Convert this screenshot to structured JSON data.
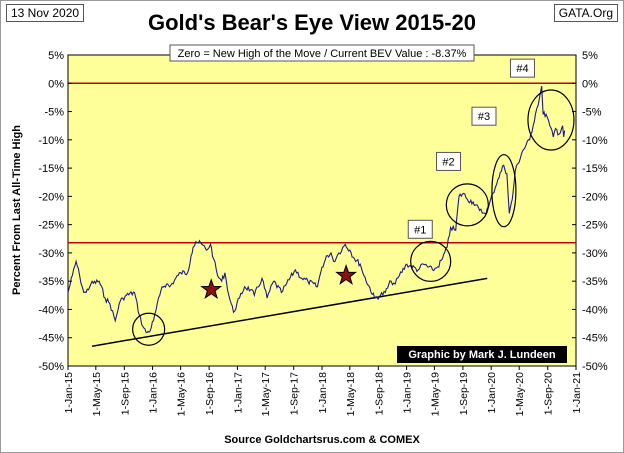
{
  "header": {
    "date": "13 Nov 2020",
    "title": "Gold's Bear's Eye View 2015-20",
    "brand": "GATA.Org"
  },
  "chart_data": {
    "type": "line",
    "title": "Gold's Bear's Eye View 2015-20",
    "subtitle": "Zero = New High of the Move / Current  BEV Value : -8.37%",
    "ylabel": "Percent  From  Last  All-Time High",
    "xlabel": "",
    "source": "Source Goldchartsrus.com & COMEX",
    "credit": "Graphic by Mark J. Lundeen",
    "ylim": [
      -50,
      5
    ],
    "y_ticks": [
      "5%",
      "0%",
      "-5%",
      "-10%",
      "-15%",
      "-20%",
      "-25%",
      "-30%",
      "-35%",
      "-40%",
      "-45%",
      "-50%"
    ],
    "y_tick_values": [
      5,
      0,
      -5,
      -10,
      -15,
      -20,
      -25,
      -30,
      -35,
      -40,
      -45,
      -50
    ],
    "x_ticks": [
      "1-Jan-15",
      "1-May-15",
      "1-Sep-15",
      "1-Jan-16",
      "1-May-16",
      "1-Sep-16",
      "1-Jan-17",
      "1-May-17",
      "1-Sep-17",
      "1-Jan-18",
      "1-May-18",
      "1-Sep-18",
      "1-Jan-19",
      "1-May-19",
      "1-Sep-19",
      "1-Jan-20",
      "1-May-20",
      "1-Sep-20",
      "1-Jan-21"
    ],
    "grid": false,
    "background": "#ffff99",
    "colors": {
      "series": "#1a1a8c",
      "reference_line": "#c00000",
      "trend_line": "#000000",
      "star": "#8b1010"
    },
    "reference_lines": [
      {
        "y": 0
      },
      {
        "y": -28.2
      }
    ],
    "trend_line": {
      "from": [
        "2015-04-15",
        -46.5
      ],
      "to": [
        "2019-12-15",
        -34.5
      ]
    },
    "series": [
      {
        "x": [
          "2015-01-01",
          "2015-01-20",
          "2015-02-05",
          "2015-02-20",
          "2015-03-10",
          "2015-03-20",
          "2015-04-10",
          "2015-05-15",
          "2015-06-10",
          "2015-07-01",
          "2015-07-24",
          "2015-08-10",
          "2015-08-25",
          "2015-09-10",
          "2015-10-15",
          "2015-11-05",
          "2015-11-20",
          "2015-12-03",
          "2015-12-17",
          "2016-01-05",
          "2016-02-01",
          "2016-02-11",
          "2016-03-01",
          "2016-03-15",
          "2016-04-20",
          "2016-05-01",
          "2016-05-31",
          "2016-06-15",
          "2016-06-24",
          "2016-07-06",
          "2016-08-01",
          "2016-08-20",
          "2016-09-07",
          "2016-09-20",
          "2016-10-07",
          "2016-10-25",
          "2016-11-08",
          "2016-11-25",
          "2016-12-15",
          "2017-01-10",
          "2017-02-01",
          "2017-02-27",
          "2017-03-15",
          "2017-04-17",
          "2017-05-09",
          "2017-06-06",
          "2017-07-10",
          "2017-08-01",
          "2017-09-08",
          "2017-10-06",
          "2017-11-01",
          "2017-12-12",
          "2018-01-01",
          "2018-01-25",
          "2018-02-09",
          "2018-02-20",
          "2018-03-15",
          "2018-04-11",
          "2018-05-01",
          "2018-05-21",
          "2018-06-15",
          "2018-07-01",
          "2018-08-16",
          "2018-09-10",
          "2018-10-01",
          "2018-10-26",
          "2018-11-13",
          "2018-12-01",
          "2019-01-02",
          "2019-02-20",
          "2019-03-15",
          "2019-04-23",
          "2019-05-15",
          "2019-06-05",
          "2019-06-25",
          "2019-07-10",
          "2019-08-01",
          "2019-08-15",
          "2019-09-04",
          "2019-09-20",
          "2019-10-15",
          "2019-11-12",
          "2019-12-05",
          "2019-12-20",
          "2020-01-08",
          "2020-01-30",
          "2020-02-24",
          "2020-03-09",
          "2020-03-19",
          "2020-04-01",
          "2020-04-14",
          "2020-05-15",
          "2020-06-15",
          "2020-07-10",
          "2020-07-28",
          "2020-08-06",
          "2020-08-12",
          "2020-08-25",
          "2020-09-10",
          "2020-09-25",
          "2020-10-05",
          "2020-10-20",
          "2020-11-04",
          "2020-11-09",
          "2020-11-13"
        ],
        "values": [
          -37,
          -34,
          -31.5,
          -34,
          -37,
          -37,
          -35.5,
          -35,
          -38,
          -39,
          -42,
          -39,
          -38,
          -37.5,
          -37,
          -41,
          -43,
          -44,
          -44,
          -42,
          -37.5,
          -36,
          -35.5,
          -36,
          -34,
          -33.5,
          -33.5,
          -30.5,
          -29,
          -28,
          -28.5,
          -29.5,
          -28.5,
          -31,
          -34,
          -35,
          -33.5,
          -37.5,
          -40.5,
          -38,
          -36,
          -36.5,
          -37.5,
          -34.5,
          -38,
          -35,
          -37,
          -35.5,
          -33,
          -34.5,
          -35,
          -36,
          -32.5,
          -30.5,
          -30,
          -31.5,
          -30,
          -28.5,
          -29.5,
          -31,
          -32,
          -34,
          -38,
          -37.5,
          -37,
          -35,
          -35.5,
          -34,
          -32,
          -33,
          -32,
          -33,
          -32.5,
          -31,
          -29,
          -25.5,
          -26,
          -20,
          -19.5,
          -20.5,
          -21,
          -22.5,
          -23,
          -22,
          -19.5,
          -17,
          -14.5,
          -16,
          -23,
          -20.5,
          -15.5,
          -12,
          -10,
          -5.5,
          -2.5,
          -0.5,
          -5.5,
          -5.5,
          -7.5,
          -9.5,
          -8,
          -9,
          -7.5,
          -9.5,
          -8.37
        ]
      }
    ],
    "annotations": [
      {
        "label": "#1",
        "x": "2019-03-01",
        "y": -26
      },
      {
        "label": "#2",
        "x": "2019-07-01",
        "y": -14
      },
      {
        "label": "#3",
        "x": "2019-12-01",
        "y": -6
      },
      {
        "label": "#4",
        "x": "2020-05-15",
        "y": 2.5
      }
    ],
    "circles": [
      {
        "cx": "2015-12-15",
        "cy": -43.5
      },
      {
        "cx": "2019-04-15",
        "cy": -31.5
      },
      {
        "cx": "2019-09-20",
        "cy": -21.5
      },
      {
        "cx": "2020-02-25",
        "cy": -19
      },
      {
        "cx": "2020-09-15",
        "cy": -6.5
      }
    ],
    "stars": [
      {
        "x": "2016-09-10",
        "y": -36.5
      },
      {
        "x": "2018-04-15",
        "y": -34
      }
    ]
  }
}
